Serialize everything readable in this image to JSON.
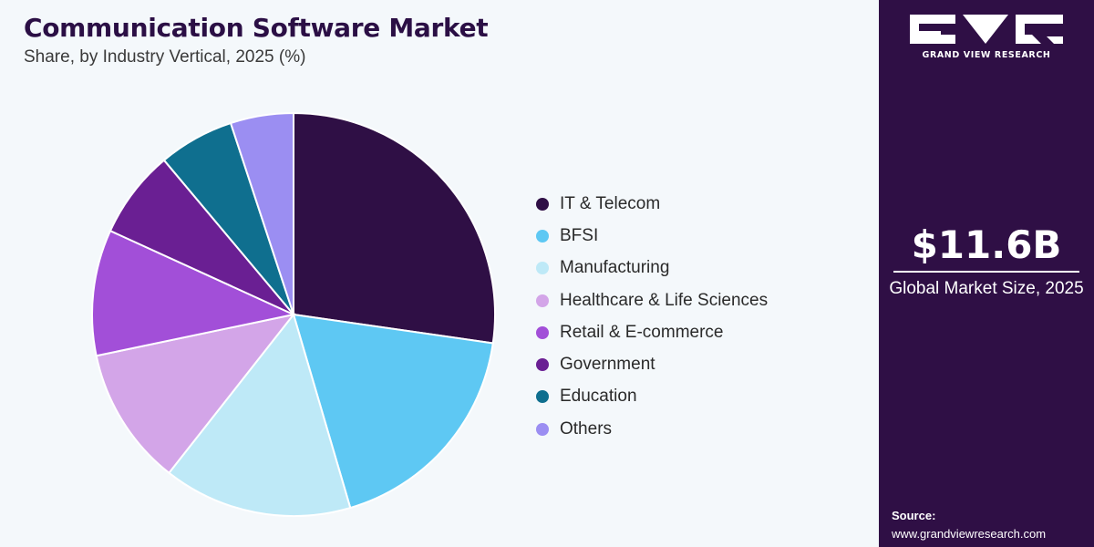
{
  "header": {
    "title": "Communication Software Market",
    "subtitle": "Share, by Industry Vertical, 2025 (%)"
  },
  "chart_data": {
    "type": "pie",
    "title": "Communication Software Market",
    "subtitle": "Share, by Industry Vertical, 2025 (%)",
    "categories": [
      "IT & Telecom",
      "BFSI",
      "Manufacturing",
      "Healthcare & Life Sciences",
      "Retail & E-commerce",
      "Government",
      "Education",
      "Others"
    ],
    "values": [
      27.0,
      18.0,
      15.0,
      11.0,
      10.0,
      7.0,
      6.0,
      5.0
    ],
    "colors": [
      "#2f0f45",
      "#5ec8f3",
      "#bee9f7",
      "#d3a5e8",
      "#a24fd8",
      "#6a1f93",
      "#0f6f8f",
      "#9b8ef2"
    ],
    "legend_position": "right",
    "slice_labels_shown": false
  },
  "sidebar": {
    "brand": "GRAND VIEW RESEARCH",
    "logo_icon": "gvr-logo-icon",
    "market_size_value": "$11.6B",
    "market_size_label": "Global Market Size, 2025",
    "source_label": "Source:",
    "source_url": "www.grandviewresearch.com"
  }
}
